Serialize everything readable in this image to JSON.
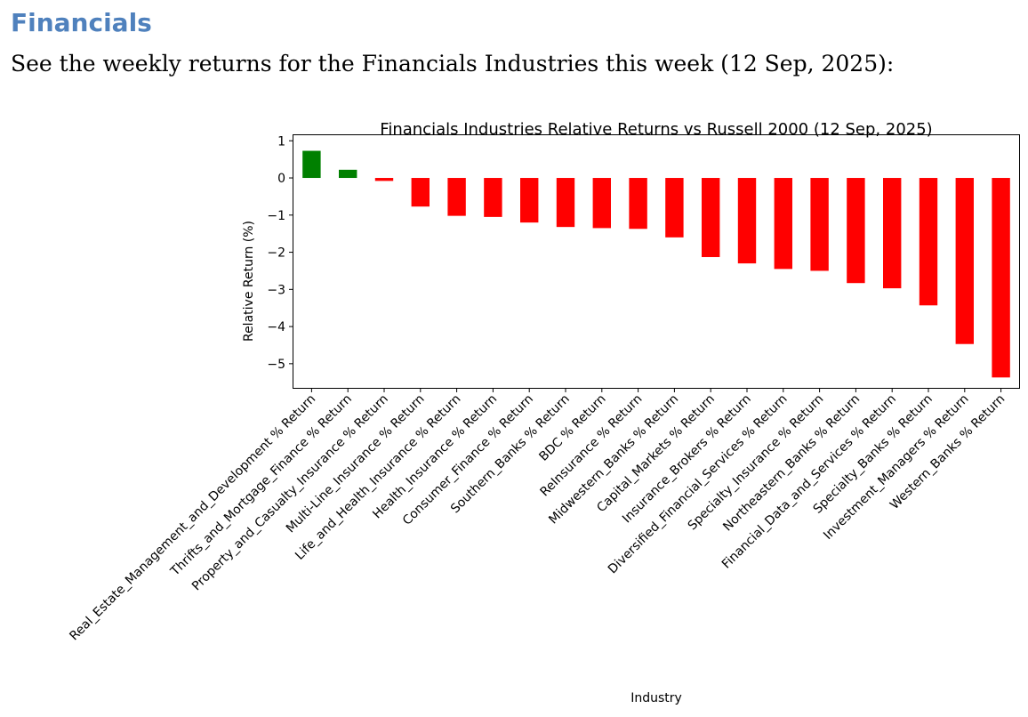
{
  "heading": "Financials",
  "intro": "See the weekly returns for the Financials Industries this week (12 Sep, 2025):",
  "chart_data": {
    "type": "bar",
    "title": "Financials Industries Relative Returns vs Russell 2000 (12 Sep, 2025)",
    "xlabel": "Industry",
    "ylabel": "Relative Return (%)",
    "ylim": [
      -5.65,
      1.15
    ],
    "yticks": [
      1,
      0,
      -1,
      -2,
      -3,
      -4,
      -5
    ],
    "ytick_labels": [
      "1",
      "0",
      "−1",
      "−2",
      "−3",
      "−4",
      "−5"
    ],
    "positive_color": "#008000",
    "negative_color": "#ff0000",
    "categories": [
      "Real_Estate_Management_and_Development % Return",
      "Thrifts_and_Mortgage_Finance % Return",
      "Property_and_Casualty_Insurance % Return",
      "Multi-Line_Insurance % Return",
      "Life_and_Health_Insurance % Return",
      "Health_Insurance % Return",
      "Consumer_Finance % Return",
      "Southern_Banks % Return",
      "BDC % Return",
      "ReInsurance % Return",
      "Midwestern_Banks % Return",
      "Capital_Markets % Return",
      "Insurance_Brokers % Return",
      "Diversified_Financial_Services % Return",
      "Specialty_Insurance % Return",
      "Northeastern_Banks % Return",
      "Financial_Data_and_Services % Return",
      "Specialty_Banks % Return",
      "Investment_Managers % Return",
      "Western_Banks % Return"
    ],
    "values": [
      0.73,
      0.22,
      -0.08,
      -0.77,
      -1.02,
      -1.05,
      -1.2,
      -1.32,
      -1.35,
      -1.37,
      -1.6,
      -2.13,
      -2.3,
      -2.45,
      -2.5,
      -2.83,
      -2.97,
      -3.43,
      -4.47,
      -5.37
    ]
  }
}
